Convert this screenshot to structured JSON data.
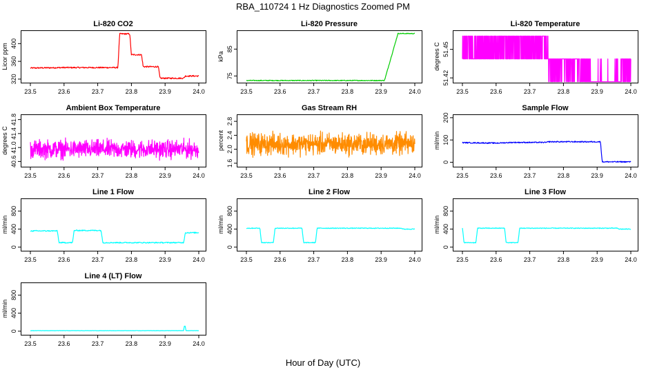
{
  "figure": {
    "title": "RBA_110724  1 Hz Diagnostics Zoomed PM",
    "xlabel": "Hour of Day (UTC)"
  },
  "chart_data": [
    {
      "type": "line",
      "title": "Li-820 CO2",
      "ylabel": "Licor ppm",
      "color": "#ff0000",
      "pattern": "step",
      "xlim": [
        23.5,
        24.0
      ],
      "xticks": [
        "23.5",
        "23.6",
        "23.7",
        "23.8",
        "23.9",
        "24.0"
      ],
      "ylim": [
        312,
        430
      ],
      "yticks": [
        "320",
        "360",
        "400"
      ],
      "x": [
        23.5,
        23.6,
        23.76,
        23.765,
        23.795,
        23.8,
        23.83,
        23.835,
        23.88,
        23.885,
        23.955,
        23.96,
        24.0
      ],
      "y": [
        345,
        346,
        346,
        422,
        422,
        375,
        375,
        348,
        348,
        322,
        322,
        327,
        327
      ],
      "noise": 1.5
    },
    {
      "type": "line",
      "title": "Li-820 Pressure",
      "ylabel": "kPa",
      "color": "#00cc00",
      "pattern": "step",
      "xlim": [
        23.5,
        24.0
      ],
      "xticks": [
        "23.5",
        "23.6",
        "23.7",
        "23.8",
        "23.9",
        "24.0"
      ],
      "ylim": [
        72.5,
        92
      ],
      "yticks": [
        "75",
        "85"
      ],
      "x": [
        23.5,
        23.91,
        23.95,
        23.96,
        24.0
      ],
      "y": [
        73.3,
        73.3,
        90.8,
        90.8,
        90.8
      ],
      "noise": 0.15
    },
    {
      "type": "line",
      "title": "Li-820 Temperature",
      "ylabel": "degrees C",
      "color": "#ff00ff",
      "pattern": "binary",
      "xlim": [
        23.5,
        24.0
      ],
      "xticks": [
        "23.5",
        "23.6",
        "23.7",
        "23.8",
        "23.9",
        "24.0"
      ],
      "ylim": [
        51.415,
        51.47
      ],
      "yticks": [
        "51.42",
        "51.45"
      ],
      "levels": [
        51.464,
        51.44,
        51.416
      ],
      "segments": [
        {
          "from": 23.5,
          "to": 23.755,
          "base": 51.44,
          "alt": 51.464,
          "p": 0.5
        },
        {
          "from": 23.755,
          "to": 23.88,
          "base": 51.44,
          "alt": 51.416,
          "p": 0.35
        },
        {
          "from": 23.88,
          "to": 23.97,
          "base": 51.416,
          "alt": 51.44,
          "p": 0.04
        },
        {
          "from": 23.97,
          "to": 24.0,
          "base": 51.416,
          "alt": 51.44,
          "p": 0.6
        }
      ]
    },
    {
      "type": "line",
      "title": "Ambient Box Temperature",
      "ylabel": "degrees C",
      "color": "#ff00ff",
      "pattern": "noise",
      "xlim": [
        23.5,
        24.0
      ],
      "xticks": [
        "23.5",
        "23.6",
        "23.7",
        "23.8",
        "23.9",
        "24.0"
      ],
      "ylim": [
        40.45,
        41.95
      ],
      "yticks": [
        "40.6",
        "41.0",
        "41.4",
        "41.8"
      ],
      "mean": 40.95,
      "amp": 0.38
    },
    {
      "type": "line",
      "title": "Gas Stream RH",
      "ylabel": "percent",
      "color": "#ff8c00",
      "pattern": "noise",
      "xlim": [
        23.5,
        24.0
      ],
      "xticks": [
        "23.5",
        "23.6",
        "23.7",
        "23.8",
        "23.9",
        "24.0"
      ],
      "ylim": [
        1.5,
        3.0
      ],
      "yticks": [
        "1.6",
        "2.0",
        "2.4",
        "2.8"
      ],
      "mean": 2.15,
      "amp": 0.45
    },
    {
      "type": "line",
      "title": "Sample Flow",
      "ylabel": "ml/min",
      "color": "#0000ff",
      "pattern": "step",
      "xlim": [
        23.5,
        24.0
      ],
      "xticks": [
        "23.5",
        "23.6",
        "23.7",
        "23.8",
        "23.9",
        "24.0"
      ],
      "ylim": [
        -20,
        215
      ],
      "yticks": [
        "0",
        "100",
        "200"
      ],
      "x": [
        23.5,
        23.6,
        23.65,
        23.75,
        23.755,
        23.91,
        23.915,
        24.0
      ],
      "y": [
        88,
        86,
        89,
        89,
        92,
        92,
        2,
        2
      ],
      "noise": 2.5
    },
    {
      "type": "line",
      "title": "Line 1 Flow",
      "ylabel": "ml/min",
      "color": "#00ffff",
      "pattern": "step",
      "xlim": [
        23.5,
        24.0
      ],
      "xticks": [
        "23.5",
        "23.6",
        "23.7",
        "23.8",
        "23.9",
        "24.0"
      ],
      "ylim": [
        -80,
        1080
      ],
      "yticks": [
        "0",
        "400",
        "800"
      ],
      "x": [
        23.5,
        23.58,
        23.585,
        23.625,
        23.63,
        23.71,
        23.715,
        23.955,
        23.96,
        24.0
      ],
      "y": [
        360,
        360,
        100,
        100,
        370,
        370,
        100,
        100,
        320,
        320
      ],
      "noise": 12
    },
    {
      "type": "line",
      "title": "Line 2 Flow",
      "ylabel": "ml/min",
      "color": "#00ffff",
      "pattern": "step",
      "xlim": [
        23.5,
        24.0
      ],
      "xticks": [
        "23.5",
        "23.6",
        "23.7",
        "23.8",
        "23.9",
        "24.0"
      ],
      "ylim": [
        -80,
        1080
      ],
      "yticks": [
        "0",
        "400",
        "800"
      ],
      "x": [
        23.5,
        23.54,
        23.545,
        23.58,
        23.585,
        23.665,
        23.67,
        23.705,
        23.71,
        23.96,
        23.965,
        24.0
      ],
      "y": [
        420,
        420,
        100,
        100,
        420,
        420,
        100,
        100,
        420,
        420,
        400,
        400
      ],
      "noise": 8
    },
    {
      "type": "line",
      "title": "Line 3 Flow",
      "ylabel": "ml/min",
      "color": "#00ffff",
      "pattern": "step",
      "xlim": [
        23.5,
        24.0
      ],
      "xticks": [
        "23.5",
        "23.6",
        "23.7",
        "23.8",
        "23.9",
        "24.0"
      ],
      "ylim": [
        -80,
        1080
      ],
      "yticks": [
        "0",
        "400",
        "800"
      ],
      "x": [
        23.5,
        23.505,
        23.54,
        23.545,
        23.625,
        23.63,
        23.665,
        23.67,
        23.96,
        23.965,
        24.0
      ],
      "y": [
        420,
        100,
        100,
        420,
        420,
        100,
        100,
        420,
        420,
        400,
        400
      ],
      "noise": 8
    },
    {
      "type": "line",
      "title": "Line 4 (LT) Flow",
      "ylabel": "ml/min",
      "color": "#00ffff",
      "pattern": "step",
      "xlim": [
        23.5,
        24.0
      ],
      "xticks": [
        "23.5",
        "23.6",
        "23.7",
        "23.8",
        "23.9",
        "24.0"
      ],
      "ylim": [
        -80,
        1080
      ],
      "yticks": [
        "0",
        "400",
        "800"
      ],
      "x": [
        23.5,
        23.955,
        23.957,
        23.96,
        23.962,
        24.0
      ],
      "y": [
        12,
        12,
        110,
        110,
        12,
        12
      ],
      "noise": 3
    }
  ]
}
